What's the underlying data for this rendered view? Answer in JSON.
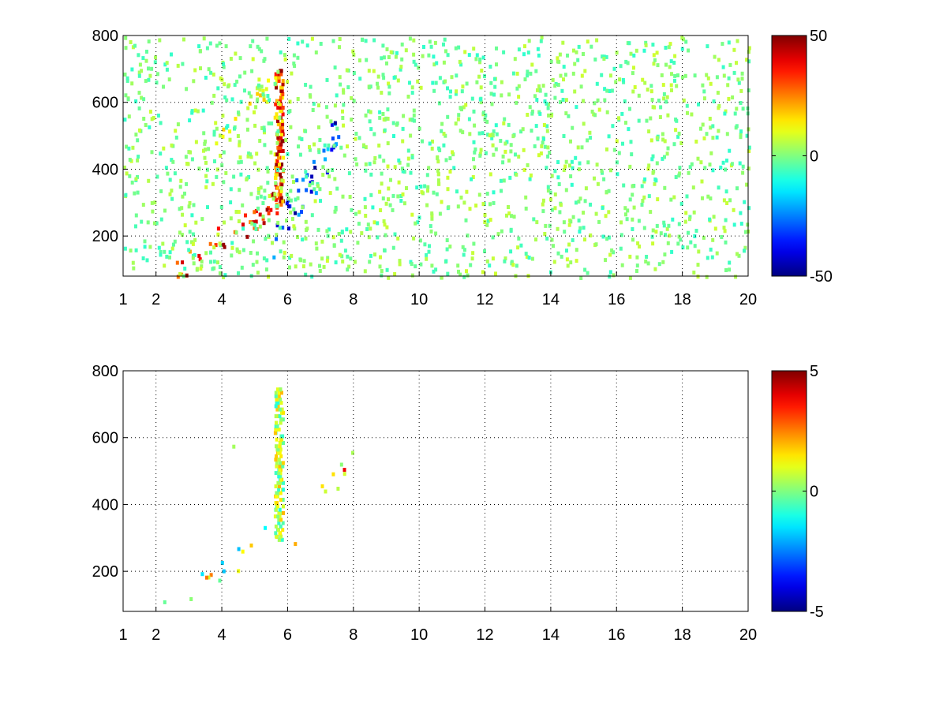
{
  "chart_data": [
    {
      "type": "heatmap",
      "title": "",
      "xlabel": "",
      "ylabel": "",
      "xlim": [
        1,
        20
      ],
      "ylim": [
        80,
        800
      ],
      "x_ticks": [
        1,
        2,
        4,
        6,
        8,
        10,
        12,
        14,
        16,
        18,
        20
      ],
      "y_ticks": [
        200,
        400,
        600,
        800
      ],
      "grid": true,
      "colormap": "jet",
      "colorbar": {
        "min": -50,
        "max": 50,
        "ticks": [
          50,
          0,
          -50
        ]
      },
      "features": [
        {
          "name": "main ridge",
          "x_range": [
            2.5,
            5.8
          ],
          "y_range": [
            100,
            320
          ],
          "value_range": [
            20,
            50
          ]
        },
        {
          "name": "vertical spike",
          "x": 5.7,
          "y_range": [
            300,
            700
          ],
          "value_range": [
            10,
            50
          ]
        },
        {
          "name": "upper branch",
          "x_range": [
            3.8,
            5.6
          ],
          "y_range": [
            480,
            680
          ],
          "value_range": [
            5,
            20
          ]
        },
        {
          "name": "negative band",
          "x_range": [
            5.5,
            7.5
          ],
          "y_range": [
            180,
            520
          ],
          "value_range": [
            -50,
            -15
          ]
        },
        {
          "name": "background speckle",
          "x_range": [
            1,
            20
          ],
          "y_range": [
            80,
            800
          ],
          "value_range": [
            -8,
            8
          ]
        }
      ]
    },
    {
      "type": "heatmap",
      "title": "",
      "xlabel": "",
      "ylabel": "",
      "xlim": [
        1,
        20
      ],
      "ylim": [
        80,
        800
      ],
      "x_ticks": [
        1,
        2,
        4,
        6,
        8,
        10,
        12,
        14,
        16,
        18,
        20
      ],
      "y_ticks": [
        200,
        400,
        600,
        800
      ],
      "grid": true,
      "colormap": "jet",
      "colorbar": {
        "min": -5,
        "max": 5,
        "ticks": [
          5,
          0,
          -5
        ]
      },
      "features": [
        {
          "name": "main ridge",
          "x_range": [
            2,
            5.8
          ],
          "y_range": [
            100,
            330
          ],
          "value_range": [
            -2,
            3
          ]
        },
        {
          "name": "vertical spike",
          "x": 5.7,
          "y_range": [
            300,
            750
          ],
          "value_range": [
            -1,
            2
          ]
        },
        {
          "name": "right cluster",
          "x_range": [
            6,
            8
          ],
          "y_range": [
            300,
            560
          ],
          "value_range": [
            0,
            4
          ]
        },
        {
          "name": "upper branch",
          "x_range": [
            4.2,
            5.1
          ],
          "y_range": [
            560,
            640
          ],
          "value_range": [
            -1,
            1
          ]
        }
      ]
    }
  ]
}
